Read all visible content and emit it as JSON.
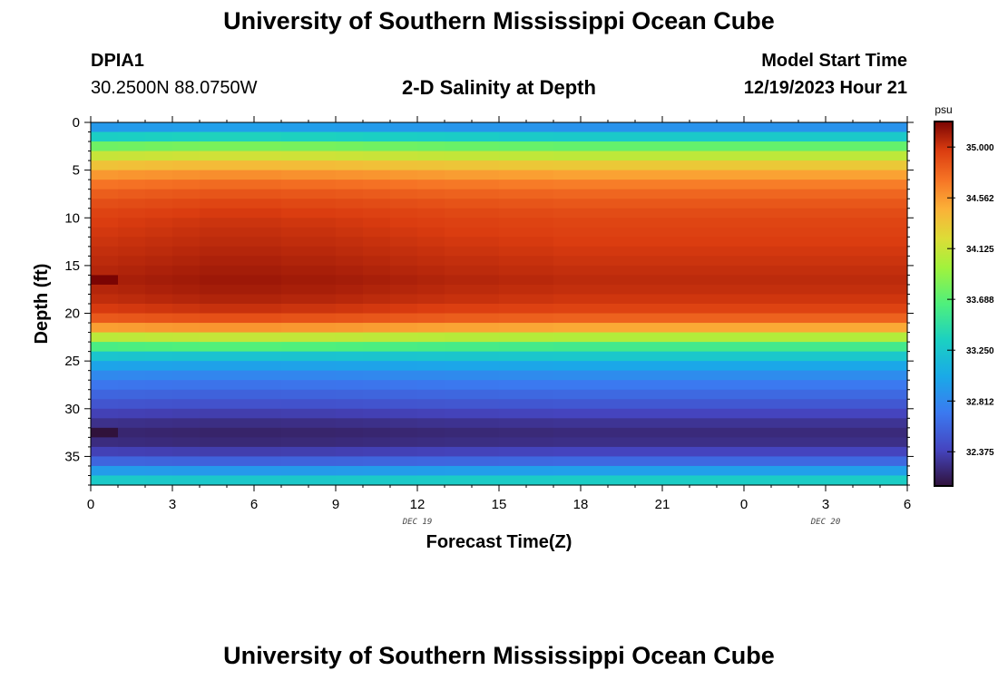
{
  "header": {
    "title": "University of Southern Mississippi Ocean Cube",
    "station_id": "DPIA1",
    "station_coords": "30.2500N  88.0750W",
    "plot_title": "2-D Salinity at Depth",
    "model_label": "Model Start Time",
    "model_time": "12/19/2023 Hour 21"
  },
  "footer": {
    "title": "University of Southern Mississippi Ocean Cube"
  },
  "chart_data": {
    "type": "heatmap",
    "title": "2-D Salinity at Depth",
    "xlabel": "Forecast Time(Z)",
    "ylabel": "Depth (ft)",
    "x_ticks": [
      "0",
      "3",
      "6",
      "9",
      "12",
      "15",
      "18",
      "21",
      "0",
      "3",
      "6"
    ],
    "date_labels": [
      {
        "tick_index": 4,
        "text": "DEC 19"
      },
      {
        "tick_index": 9,
        "text": "DEC 20"
      }
    ],
    "y_ticks": [
      0,
      5,
      10,
      15,
      20,
      25,
      30,
      35
    ],
    "ylim": [
      0,
      38
    ],
    "xlim_hours": [
      0,
      30
    ],
    "colorbar": {
      "unit": "psu",
      "range": [
        32.08,
        35.22
      ],
      "labels": [
        "35.000",
        "34.562",
        "34.125",
        "33.688",
        "33.250",
        "32.812",
        "32.375"
      ],
      "label_values": [
        35.0,
        34.562,
        34.125,
        33.688,
        33.25,
        32.812,
        32.375
      ]
    },
    "profile_depths_ft": [
      0.5,
      1.5,
      2.5,
      3.5,
      4.5,
      5.5,
      6.5,
      7.5,
      8.5,
      9.5,
      10.5,
      11.5,
      12.5,
      13.5,
      14.5,
      15.5,
      16.5,
      17.5,
      18.5,
      19.5,
      20.5,
      21.5,
      22.5,
      23.5,
      24.5,
      25.5,
      26.5,
      27.5,
      28.5,
      29.5,
      30.5,
      31.5,
      32.5,
      33.5,
      34.5,
      35.5,
      36.5,
      37.5
    ],
    "profile_salinity_psu": [
      32.9,
      33.3,
      33.75,
      34.1,
      34.35,
      34.55,
      34.7,
      34.8,
      34.87,
      34.92,
      34.95,
      34.97,
      34.99,
      35.01,
      35.03,
      35.05,
      35.07,
      35.05,
      35.02,
      34.96,
      34.82,
      34.52,
      34.05,
      33.6,
      33.25,
      33.0,
      32.82,
      32.7,
      32.6,
      32.5,
      32.38,
      32.28,
      32.22,
      32.25,
      32.38,
      32.6,
      32.95,
      33.3
    ],
    "hourly_offset_upper": [
      0.02,
      0.03,
      0.04,
      0.05,
      0.06,
      0.06,
      0.06,
      0.05,
      0.05,
      0.04,
      0.03,
      0.02,
      0.01,
      0.0,
      0.0,
      -0.01,
      -0.01,
      -0.02,
      -0.02,
      -0.02,
      -0.02,
      -0.02,
      -0.02,
      -0.02,
      -0.02,
      -0.02,
      -0.02,
      -0.02,
      -0.02,
      -0.02
    ],
    "anomalies": [
      {
        "hour": 0,
        "depth_ft": [
          16,
          17
        ],
        "salinity_psu": 35.22
      },
      {
        "hour": 0,
        "depth_ft": [
          32,
          33
        ],
        "salinity_psu": 32.0
      }
    ]
  }
}
